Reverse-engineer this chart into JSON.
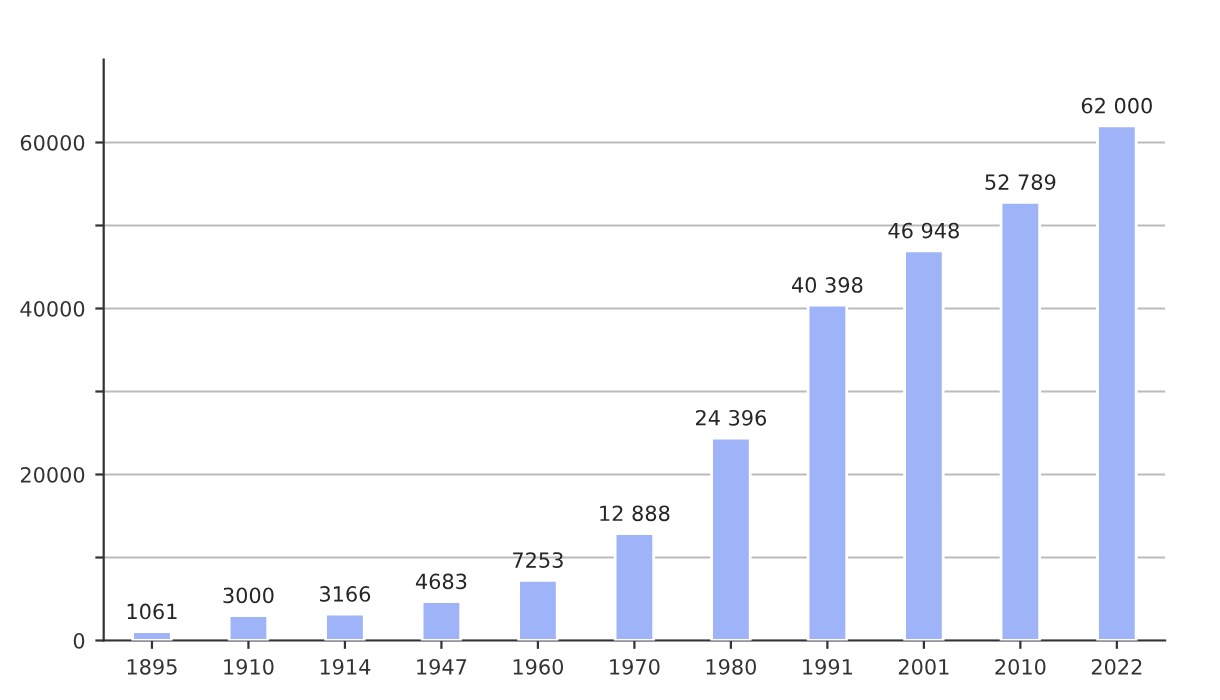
{
  "chart_data": {
    "type": "bar",
    "categories": [
      "1895",
      "1910",
      "1914",
      "1947",
      "1960",
      "1970",
      "1980",
      "1991",
      "2001",
      "2010",
      "2022"
    ],
    "values": [
      1061,
      3000,
      3166,
      4683,
      7253,
      12888,
      24396,
      40398,
      46948,
      52789,
      62000
    ],
    "value_labels": [
      "1061",
      "3000",
      "3166",
      "4683",
      "7253",
      "12 888",
      "24 396",
      "40 398",
      "46 948",
      "52 789",
      "62 000"
    ],
    "color": "#9fb3f8",
    "ylim": [
      0,
      70000
    ],
    "yticks": [
      0,
      {
        "value": 10000,
        "label": null
      },
      20000,
      {
        "value": 30000,
        "label": null
      },
      40000,
      {
        "value": 50000,
        "label": null
      },
      60000
    ],
    "grid": "y"
  }
}
